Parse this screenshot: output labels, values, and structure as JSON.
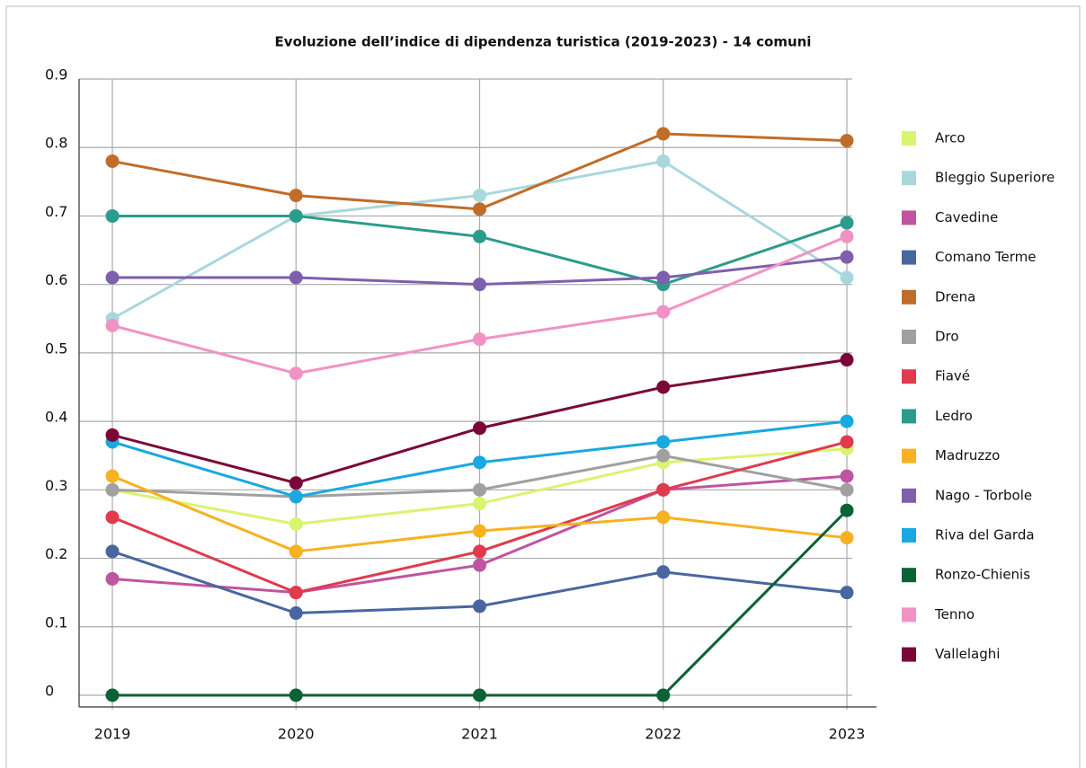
{
  "chart_data": {
    "type": "line",
    "title": "Evoluzione dell’indice di dipendenza turistica (2019-2023) - 14 comuni",
    "categories": [
      "2019",
      "2020",
      "2021",
      "2022",
      "2023"
    ],
    "ylim": [
      0,
      0.9
    ],
    "yticks": [
      0,
      0.1,
      0.2,
      0.3,
      0.4,
      0.5,
      0.6,
      0.7,
      0.8,
      0.9
    ],
    "grid": true,
    "legend": "right",
    "series": [
      {
        "name": "Arco",
        "color": "#d9f46e",
        "values": [
          0.3,
          0.25,
          0.28,
          0.34,
          0.36
        ]
      },
      {
        "name": "Bleggio Superiore",
        "color": "#a8d8dc",
        "values": [
          0.55,
          0.7,
          0.73,
          0.78,
          0.61
        ]
      },
      {
        "name": "Cavedine",
        "color": "#c054a0",
        "values": [
          0.17,
          0.15,
          0.19,
          0.3,
          0.32
        ]
      },
      {
        "name": "Comano Terme",
        "color": "#4867a0",
        "values": [
          0.21,
          0.12,
          0.13,
          0.18,
          0.15
        ]
      },
      {
        "name": "Drena",
        "color": "#c06d2a",
        "values": [
          0.78,
          0.73,
          0.71,
          0.82,
          0.81
        ]
      },
      {
        "name": "Dro",
        "color": "#a0a0a0",
        "values": [
          0.3,
          0.29,
          0.3,
          0.35,
          0.3
        ]
      },
      {
        "name": "Fiavé",
        "color": "#e03a4e",
        "values": [
          0.26,
          0.15,
          0.21,
          0.3,
          0.37
        ]
      },
      {
        "name": "Ledro",
        "color": "#2a9c8c",
        "values": [
          0.7,
          0.7,
          0.67,
          0.6,
          0.69
        ]
      },
      {
        "name": "Madruzzo",
        "color": "#f8b120",
        "values": [
          0.32,
          0.21,
          0.24,
          0.26,
          0.23
        ]
      },
      {
        "name": "Nago - Torbole",
        "color": "#7e5fae",
        "values": [
          0.61,
          0.61,
          0.6,
          0.61,
          0.64
        ]
      },
      {
        "name": "Riva del Garda",
        "color": "#1aa8e0",
        "values": [
          0.37,
          0.29,
          0.34,
          0.37,
          0.4
        ]
      },
      {
        "name": "Ronzo-Chienis",
        "color": "#0b6236",
        "values": [
          0,
          0,
          0,
          0,
          0.27
        ]
      },
      {
        "name": "Tenno",
        "color": "#f093c4",
        "values": [
          0.54,
          0.47,
          0.52,
          0.56,
          0.67
        ]
      },
      {
        "name": "Vallelaghi",
        "color": "#7a0738",
        "values": [
          0.38,
          0.31,
          0.39,
          0.45,
          0.49
        ]
      }
    ]
  }
}
